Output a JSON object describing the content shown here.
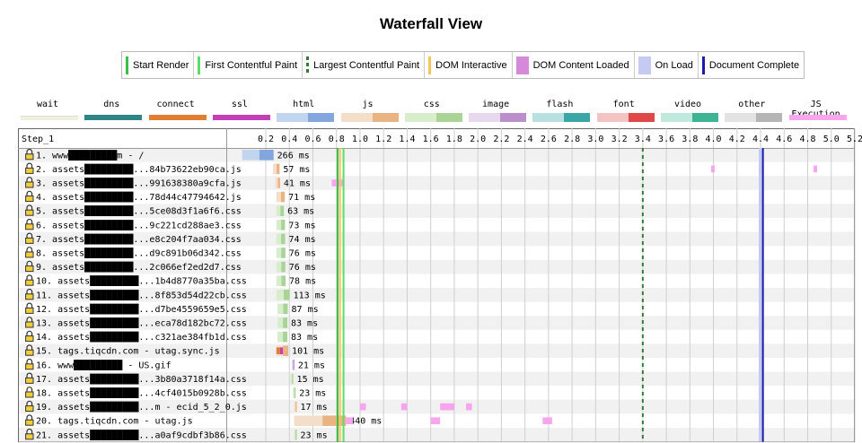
{
  "title": "Waterfall View",
  "legend": [
    {
      "label": "Start Render",
      "color": "#3bbf4a",
      "style": "line"
    },
    {
      "label": "First Contentful Paint",
      "color": "#5edc6a",
      "style": "line"
    },
    {
      "label": "Largest Contentful Paint",
      "color": "#2e7d32",
      "style": "dashed"
    },
    {
      "label": "DOM Interactive",
      "color": "#f2c45a",
      "style": "line"
    },
    {
      "label": "DOM Content Loaded",
      "color": "#d48ad8",
      "style": "block"
    },
    {
      "label": "On Load",
      "color": "#c5caf2",
      "style": "block"
    },
    {
      "label": "Document Complete",
      "color": "#1c1cab",
      "style": "line"
    }
  ],
  "types": [
    {
      "label": "wait",
      "c1": "#f1f0dc",
      "c2": "#f1f0dc"
    },
    {
      "label": "dns",
      "c1": "#2f8487",
      "c2": "#2f8487"
    },
    {
      "label": "connect",
      "c1": "#e07e32",
      "c2": "#e07e32"
    },
    {
      "label": "ssl",
      "c1": "#c23fb5",
      "c2": "#c23fb5"
    },
    {
      "label": "html",
      "c1": "#c2d5ee",
      "c2": "#82a6dd"
    },
    {
      "label": "js",
      "c1": "#f3dfc9",
      "c2": "#eab382"
    },
    {
      "label": "css",
      "c1": "#d7edcc",
      "c2": "#a9d496"
    },
    {
      "label": "image",
      "c1": "#e8d8ee",
      "c2": "#bb8fcc"
    },
    {
      "label": "flash",
      "c1": "#b8e0e0",
      "c2": "#3ba6a6"
    },
    {
      "label": "font",
      "c1": "#f4c3c3",
      "c2": "#e04848"
    },
    {
      "label": "video",
      "c1": "#c0e9dd",
      "c2": "#3fb494"
    },
    {
      "label": "other",
      "c1": "#e3e3e3",
      "c2": "#b5b5b5"
    },
    {
      "label": "JS Execution",
      "c1": "#f6a5ee",
      "c2": "#f6a5ee"
    }
  ],
  "step_label": "Step_1",
  "chart_data": {
    "type": "waterfall",
    "unit": "s",
    "x_ticks": [
      "0.2",
      "0.4",
      "0.6",
      "0.8",
      "1.0",
      "1.2",
      "1.4",
      "1.6",
      "1.8",
      "2.0",
      "2.2",
      "2.4",
      "2.6",
      "2.8",
      "3.0",
      "3.2",
      "3.4",
      "3.6",
      "3.8",
      "4.0",
      "4.2",
      "4.4",
      "4.6",
      "4.8",
      "5.0",
      "5.2"
    ],
    "markers": {
      "start_render": 0.81,
      "first_contentful_paint": 0.86,
      "largest_contentful_paint": 3.4,
      "dom_interactive": 0.83,
      "on_load": 4.4,
      "document_complete": 4.42
    },
    "requests": [
      {
        "label": "1. www█████████m - /",
        "type": "html",
        "start": 0.0,
        "dur": 0.266,
        "ms": "266 ms"
      },
      {
        "label": "2. assets█████████...84b73622eb90ca.js",
        "type": "js",
        "start": 0.26,
        "dur": 0.057,
        "ms": "57 ms"
      },
      {
        "label": "3. assets█████████...991638380a9cfa.js",
        "type": "js",
        "start": 0.28,
        "dur": 0.041,
        "ms": "41 ms"
      },
      {
        "label": "4. assets█████████...78d44c47794642.js",
        "type": "js",
        "start": 0.29,
        "dur": 0.071,
        "ms": "71 ms"
      },
      {
        "label": "5. assets█████████...5ce08d3f1a6f6.css",
        "type": "css",
        "start": 0.29,
        "dur": 0.063,
        "ms": "63 ms"
      },
      {
        "label": "6. assets█████████...9c221cd288ae3.css",
        "type": "css",
        "start": 0.29,
        "dur": 0.073,
        "ms": "73 ms"
      },
      {
        "label": "7. assets█████████...e8c204f7aa034.css",
        "type": "css",
        "start": 0.29,
        "dur": 0.074,
        "ms": "74 ms"
      },
      {
        "label": "8. assets█████████...d9c891b06d342.css",
        "type": "css",
        "start": 0.29,
        "dur": 0.076,
        "ms": "76 ms"
      },
      {
        "label": "9. assets█████████...2c066ef2ed2d7.css",
        "type": "css",
        "start": 0.29,
        "dur": 0.076,
        "ms": "76 ms"
      },
      {
        "label": "10. assets█████████...1b4d8770a35ba.css",
        "type": "css",
        "start": 0.29,
        "dur": 0.078,
        "ms": "78 ms"
      },
      {
        "label": "11. assets█████████...8f853d54d22cb.css",
        "type": "css",
        "start": 0.29,
        "dur": 0.113,
        "ms": "113 ms"
      },
      {
        "label": "12. assets█████████...d7be4559659e5.css",
        "type": "css",
        "start": 0.3,
        "dur": 0.087,
        "ms": "87 ms"
      },
      {
        "label": "13. assets█████████...eca78d182bc72.css",
        "type": "css",
        "start": 0.3,
        "dur": 0.083,
        "ms": "83 ms"
      },
      {
        "label": "14. assets█████████...c321ae384fb1d.css",
        "type": "css",
        "start": 0.3,
        "dur": 0.083,
        "ms": "83 ms"
      },
      {
        "label": "15. tags.tiqcdn.com - utag.sync.js",
        "type": "js",
        "start": 0.29,
        "dur": 0.101,
        "ms": "101 ms",
        "connect": true
      },
      {
        "label": "16. www█████████ - US.gif",
        "type": "image",
        "start": 0.42,
        "dur": 0.021,
        "ms": "21 ms"
      },
      {
        "label": "17. assets█████████...3b80a3718f14a.css",
        "type": "css",
        "start": 0.41,
        "dur": 0.015,
        "ms": "15 ms"
      },
      {
        "label": "18. assets█████████...4cf4015b0928b.css",
        "type": "css",
        "start": 0.43,
        "dur": 0.023,
        "ms": "23 ms"
      },
      {
        "label": "19. assets█████████...m - ecid_5_2_0.js",
        "type": "js",
        "start": 0.44,
        "dur": 0.017,
        "ms": "17 ms"
      },
      {
        "label": "20. tags.tiqcdn.com - utag.js",
        "type": "js",
        "start": 0.44,
        "dur": 0.44,
        "ms": "440 ms"
      },
      {
        "label": "21. assets█████████...a0af9cdbf3b86.css",
        "type": "css",
        "start": 0.44,
        "dur": 0.023,
        "ms": "23 ms"
      }
    ],
    "js_execution": [
      {
        "row": 2,
        "start": 3.98,
        "dur": 0.03
      },
      {
        "row": 2,
        "start": 4.85,
        "dur": 0.03
      },
      {
        "row": 3,
        "start": 0.76,
        "dur": 0.1
      },
      {
        "row": 19,
        "start": 1.0,
        "dur": 0.05
      },
      {
        "row": 19,
        "start": 1.35,
        "dur": 0.05
      },
      {
        "row": 19,
        "start": 1.68,
        "dur": 0.12
      },
      {
        "row": 19,
        "start": 1.9,
        "dur": 0.05
      },
      {
        "row": 20,
        "start": 0.88,
        "dur": 0.06
      },
      {
        "row": 20,
        "start": 1.6,
        "dur": 0.08
      },
      {
        "row": 20,
        "start": 2.55,
        "dur": 0.08
      }
    ]
  }
}
